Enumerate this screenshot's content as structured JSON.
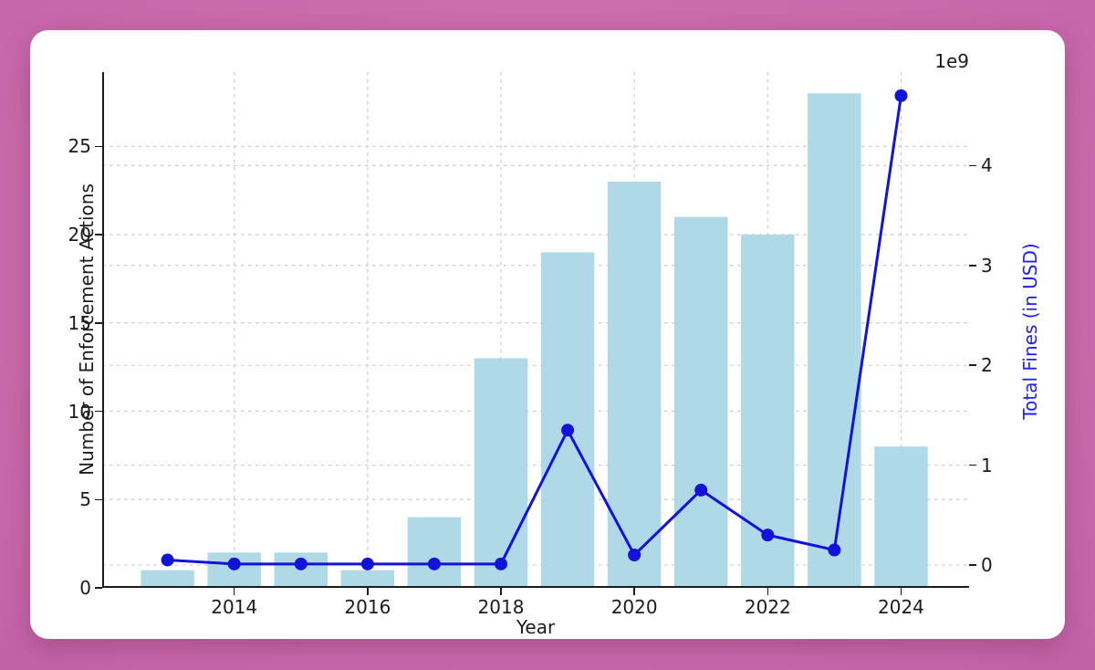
{
  "page": {
    "background_color": "#c565a8",
    "card_color": "#ffffff"
  },
  "chart_data": {
    "type": "bar",
    "title": "",
    "x": [
      2013,
      2014,
      2015,
      2016,
      2017,
      2018,
      2019,
      2020,
      2021,
      2022,
      2023,
      2024
    ],
    "series": [
      {
        "name": "Number of Enforcement Actions",
        "type": "bar",
        "axis": "left",
        "color": "#b0d9e8",
        "values": [
          1,
          2,
          2,
          1,
          4,
          13,
          19,
          23,
          21,
          20,
          28,
          8
        ]
      },
      {
        "name": "Total Fines (in USD)",
        "type": "line",
        "axis": "right",
        "color": "#1212d9",
        "marker": "circle",
        "values_in_billions": [
          0.05,
          0.01,
          0.01,
          0.01,
          0.01,
          0.01,
          1.35,
          0.1,
          0.75,
          0.3,
          0.15,
          4.7
        ]
      }
    ],
    "xlabel": "Year",
    "ylabel_left": "Number of Enforcement Actions",
    "ylabel_right": "Total Fines (in USD)",
    "offset_label": "1e9",
    "axes": {
      "x_ticks": [
        2014,
        2016,
        2018,
        2020,
        2022,
        2024
      ],
      "left_ticks": [
        0,
        5,
        10,
        15,
        20,
        25
      ],
      "right_ticks": [
        0,
        1,
        2,
        3,
        4
      ],
      "xlim": [
        2012.02,
        2025.02
      ],
      "ylim_left": [
        0,
        29.2
      ],
      "ylim_right": [
        -0.229,
        4.936
      ],
      "grid": true,
      "grid_style": "dashed",
      "grid_color": "#cbcbcb",
      "spine_color": "#1c1c1c",
      "right_label_color": "#2222ee",
      "legend": "none"
    }
  }
}
